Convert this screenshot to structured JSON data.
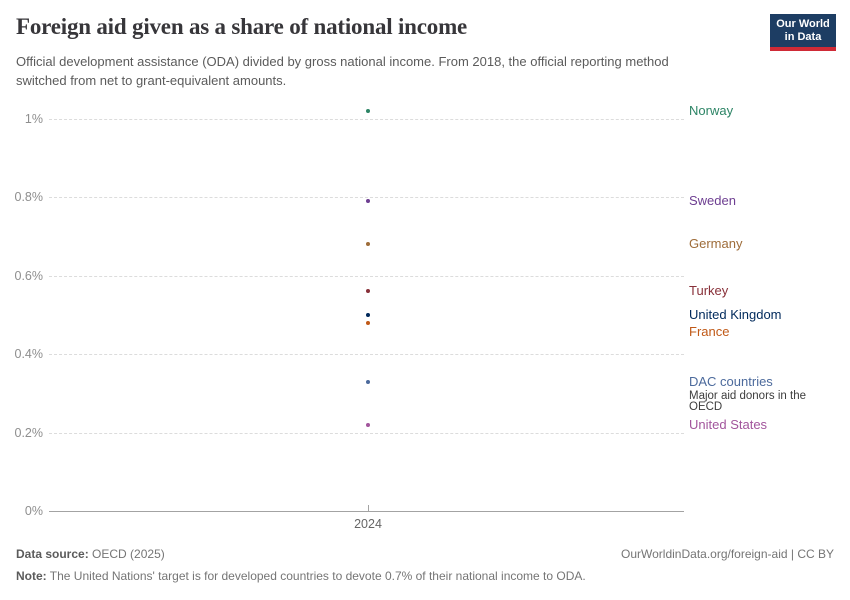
{
  "header": {
    "title": "Foreign aid given as a share of national income",
    "subtitle": "Official development assistance (ODA) divided by gross national income. From 2018, the official reporting method switched from net to grant-equivalent amounts.",
    "logo": {
      "line1": "Our World",
      "line2": "in Data",
      "bg_color": "#1d3d63",
      "stripe_color": "#cf2a36"
    }
  },
  "chart_data": {
    "type": "scatter",
    "title": "Foreign aid given as a share of national income",
    "xlabel": "",
    "ylabel": "",
    "x_year": 2024,
    "x_tick_label": "2024",
    "grid": true,
    "legend_position": "right-labels",
    "y_axis": {
      "ticks": [
        0,
        0.2,
        0.4,
        0.6,
        0.8,
        1
      ],
      "tick_labels": [
        "0%",
        "0.2%",
        "0.4%",
        "0.6%",
        "0.8%",
        "1%"
      ],
      "unit": "%",
      "ylim": [
        0,
        1.07
      ]
    },
    "series": [
      {
        "name": "Norway",
        "value": 1.02,
        "color": "#2C8465"
      },
      {
        "name": "Sweden",
        "value": 0.79,
        "color": "#6D3E91"
      },
      {
        "name": "Germany",
        "value": 0.68,
        "color": "#9E6C39"
      },
      {
        "name": "Turkey",
        "value": 0.56,
        "color": "#883039"
      },
      {
        "name": "United Kingdom",
        "value": 0.5,
        "color": "#00295B"
      },
      {
        "name": "France",
        "value": 0.48,
        "color": "#C05917"
      },
      {
        "name": "DAC countries",
        "value": 0.33,
        "color": "#4C6A9C",
        "note": "Major aid donors in the OECD"
      },
      {
        "name": "United States",
        "value": 0.22,
        "color": "#A2559C"
      }
    ]
  },
  "footer": {
    "source_label": "Data source:",
    "source_value": "OECD (2025)",
    "attribution": "OurWorldinData.org/foreign-aid | CC BY",
    "note_label": "Note:",
    "note_value": "The United Nations' target is for developed countries to devote 0.7% of their national income to ODA."
  }
}
